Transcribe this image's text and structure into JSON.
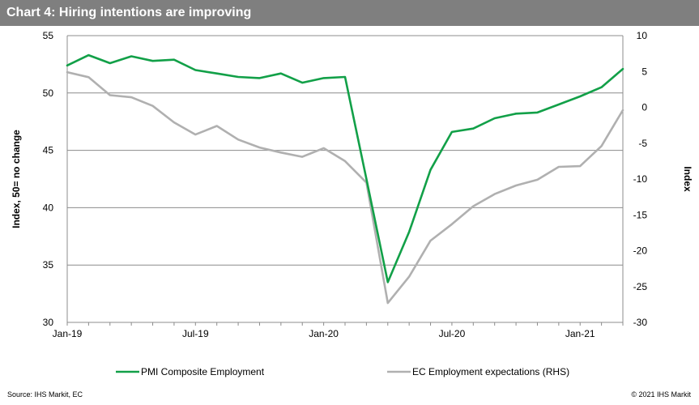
{
  "header": {
    "title": "Chart 4: Hiring intentions are improving"
  },
  "footer": {
    "source": "Source:  IHS Markit, EC",
    "copyright": "© 2021  IHS Markit"
  },
  "colors": {
    "pmi": "#12a048",
    "ec": "#b0b0b0",
    "title_bg": "#7f7f7f"
  },
  "chart_data": {
    "type": "line",
    "x": [
      "2019-01",
      "2019-02",
      "2019-03",
      "2019-04",
      "2019-05",
      "2019-06",
      "2019-07",
      "2019-08",
      "2019-09",
      "2019-10",
      "2019-11",
      "2019-12",
      "2020-01",
      "2020-02",
      "2020-03",
      "2020-04",
      "2020-05",
      "2020-06",
      "2020-07",
      "2020-08",
      "2020-09",
      "2020-10",
      "2020-11",
      "2020-12",
      "2021-01",
      "2021-02",
      "2021-03"
    ],
    "x_tick_labels": [
      "Jan-19",
      "Jul-19",
      "Jan-20",
      "Jul-20",
      "Jan-21"
    ],
    "ylabel": "Index, 50= no change",
    "y2label": "Index",
    "ylim": [
      30,
      55
    ],
    "y2lim": [
      -30,
      10
    ],
    "y_ticks": [
      30,
      35,
      40,
      45,
      50,
      55
    ],
    "y2_ticks": [
      -30,
      -25,
      -20,
      -15,
      -10,
      -5,
      0,
      5,
      10
    ],
    "grid": true,
    "legend_position": "bottom",
    "series": [
      {
        "name": "PMI Composite Employment",
        "axis": "left",
        "values": [
          52.4,
          53.3,
          52.6,
          53.2,
          52.8,
          52.9,
          52.0,
          51.7,
          51.4,
          51.3,
          51.7,
          50.9,
          51.3,
          51.4,
          42.5,
          33.5,
          37.9,
          43.3,
          46.6,
          46.9,
          47.8,
          48.2,
          48.3,
          49.0,
          49.7,
          50.5,
          52.1
        ]
      },
      {
        "name": "EC Employment expectations (RHS)",
        "axis": "right",
        "values": [
          4.9,
          4.2,
          1.7,
          1.4,
          0.2,
          -2.1,
          -3.8,
          -2.6,
          -4.5,
          -5.6,
          -6.3,
          -6.9,
          -5.7,
          -7.5,
          -10.5,
          -27.3,
          -23.6,
          -18.6,
          -16.3,
          -13.8,
          -12.1,
          -10.9,
          -10.1,
          -8.3,
          -8.2,
          -5.4,
          -0.4
        ]
      }
    ]
  }
}
